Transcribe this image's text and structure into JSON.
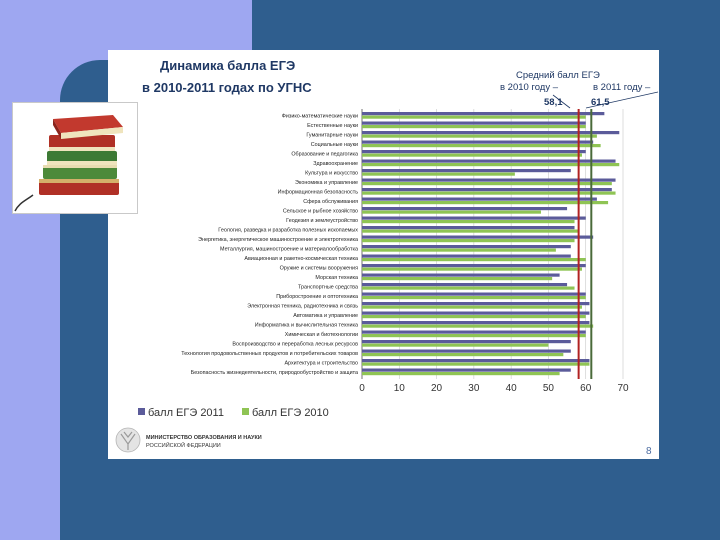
{
  "slide": {
    "title_line1": "Динамика балла ЕГЭ",
    "title_line2": "в 2010-2011 годах по УГНС",
    "annotation_line1": "Средний балл ЕГЭ",
    "annotation_2010": "в 2010 году –",
    "annotation_2011": "в 2011 году –",
    "avg_2010": "58,1",
    "avg_2011": "61,5",
    "page_number": "8",
    "ministry_line1": "МИНИСТЕРСТВО ОБРАЗОВАНИЯ И НАУКИ",
    "ministry_line2": "РОССИЙСКОЙ ФЕДЕРАЦИИ"
  },
  "colors": {
    "series_2011": "#5b5b9a",
    "series_2010": "#8fc454",
    "ref_line_2010": "#b22222",
    "ref_line_2011": "#4a6a3a",
    "title": "#1f3864",
    "background": "#2f5e8e"
  },
  "chart_data": {
    "type": "bar",
    "orientation": "horizontal",
    "categories": [
      "Физико-математические науки",
      "Естественные науки",
      "Гуманитарные науки",
      "Социальные науки",
      "Образование и педагогика",
      "Здравоохранение",
      "Культура и искусство",
      "Экономика и управление",
      "Информационная безопасность",
      "Сфера обслуживания",
      "Сельское и рыбное хозяйство",
      "Геодезия и землеустройство",
      "Геология, разведка и разработка полезных ископаемых",
      "Энергетика, энергетическое машиностроение и электротехника",
      "Металлургия, машиностроение и материалообработка",
      "Авиационная и ракетно-космическая техника",
      "Оружие и системы вооружения",
      "Морская техника",
      "Транспортные средства",
      "Приборостроение и оптотехника",
      "Электронная техника, радиотехника и связь",
      "Автоматика и управление",
      "Информатика и вычислительная техника",
      "Химическая и биотехнологии",
      "Воспроизводство и переработка лесных ресурсов",
      "Технология продовольственных продуктов и потребительских товаров",
      "Архитектура и строительство",
      "Безопасность жизнедеятельности, природообустройство и защита"
    ],
    "series": [
      {
        "name": "балл ЕГЭ 2011",
        "values": [
          65,
          60,
          69,
          62,
          60,
          68,
          56,
          68,
          67,
          63,
          55,
          60,
          57,
          62,
          56,
          56,
          60,
          53,
          55,
          60,
          61,
          61,
          61,
          60,
          56,
          56,
          61,
          56
        ]
      },
      {
        "name": "балл ЕГЭ 2010",
        "values": [
          60,
          60,
          63,
          64,
          59,
          69,
          41,
          67,
          68,
          66,
          48,
          57,
          58,
          57,
          52,
          60,
          59,
          51,
          57,
          60,
          59,
          60,
          62,
          60,
          50,
          54,
          61,
          53
        ]
      }
    ],
    "xticks": [
      0,
      10,
      20,
      30,
      40,
      50,
      60,
      70
    ],
    "xlim": [
      0,
      70
    ],
    "reference_lines": [
      {
        "label": "58,1",
        "value": 58.1
      },
      {
        "label": "61,5",
        "value": 61.5
      }
    ],
    "legend_position": "bottom-left",
    "grid": true
  }
}
